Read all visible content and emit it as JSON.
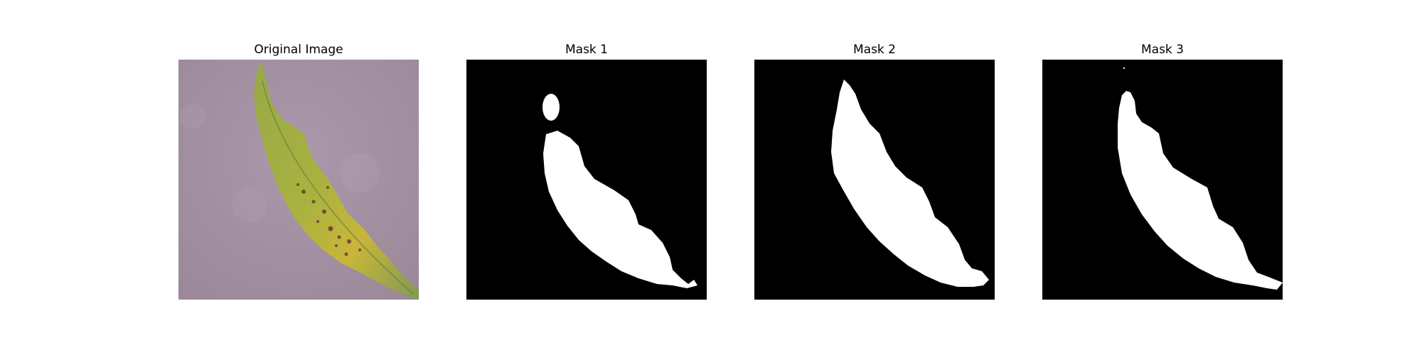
{
  "panels": [
    {
      "title": "Original Image",
      "kind": "photo",
      "subject": "leaf"
    },
    {
      "title": "Mask 1",
      "kind": "mask"
    },
    {
      "title": "Mask 2",
      "kind": "mask"
    },
    {
      "title": "Mask 3",
      "kind": "mask"
    }
  ],
  "colors": {
    "page_background": "#ffffff",
    "photo_background": "#a792a6",
    "leaf_green": "#8aa544",
    "leaf_yellow": "#c9b43d",
    "lesion_brown": "#7a4a35",
    "mask_background": "#000000",
    "mask_foreground": "#ffffff"
  }
}
